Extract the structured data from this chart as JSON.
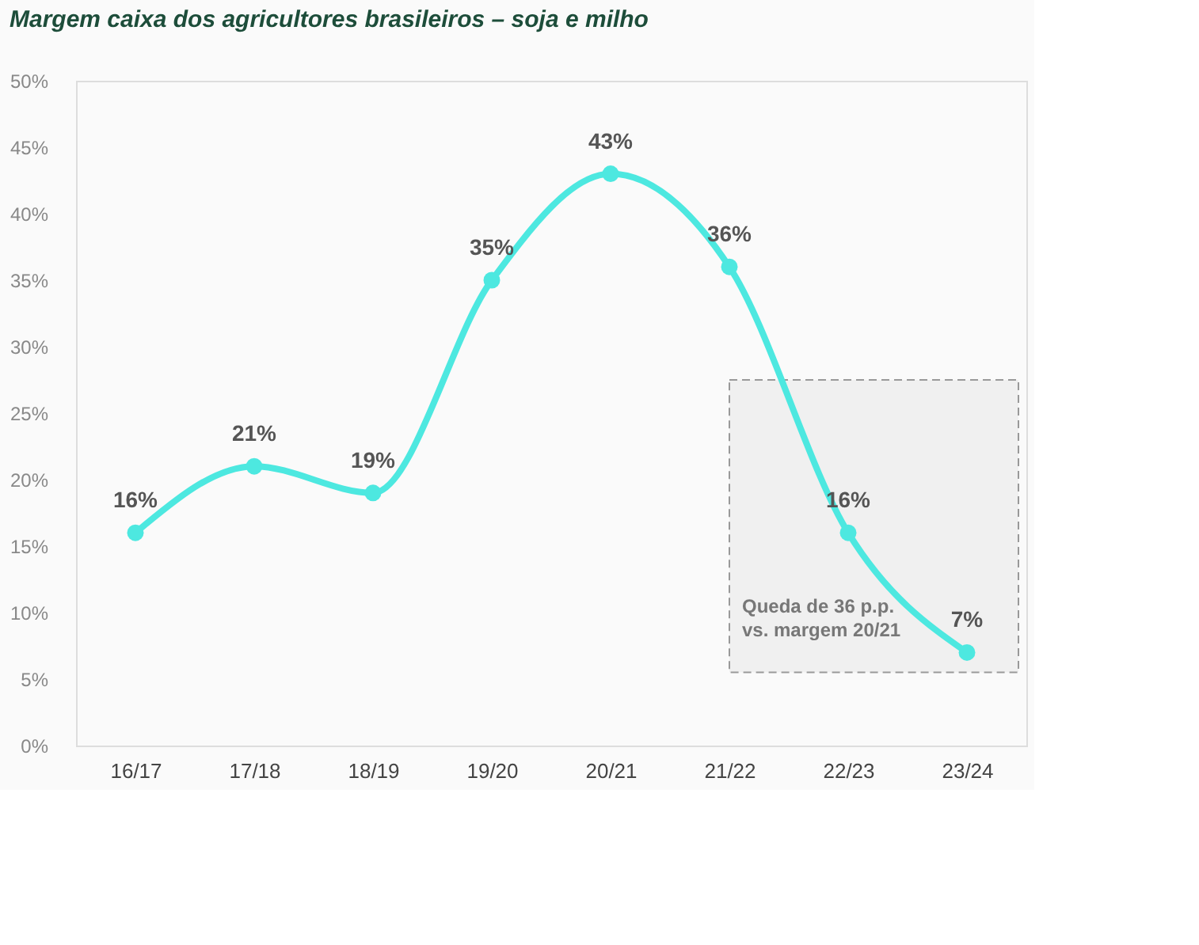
{
  "chart_data": {
    "type": "line",
    "title": "Margem caixa dos agricultores brasileiros – soja e milho",
    "categories": [
      "16/17",
      "17/18",
      "18/19",
      "19/20",
      "20/21",
      "21/22",
      "22/23",
      "23/24"
    ],
    "series": [
      {
        "color": "#4de8e0",
        "values": [
          16,
          21,
          19,
          35,
          43,
          36,
          16,
          7
        ]
      }
    ],
    "ylim": [
      0,
      50
    ],
    "yticks": [
      {
        "value": 0,
        "label": "0%"
      },
      {
        "value": 5,
        "label": "5%"
      },
      {
        "value": 10,
        "label": "10%"
      },
      {
        "value": 15,
        "label": "15%"
      },
      {
        "value": 20,
        "label": "20%"
      },
      {
        "value": 25,
        "label": "25%"
      },
      {
        "value": 30,
        "label": "30%"
      },
      {
        "value": 35,
        "label": "35%"
      },
      {
        "value": 40,
        "label": "40%"
      },
      {
        "value": 45,
        "label": "45%"
      },
      {
        "value": 50,
        "label": "50%"
      }
    ],
    "value_labels": [
      "16%",
      "21%",
      "19%",
      "35%",
      "43%",
      "36%",
      "16%",
      "7%"
    ],
    "bands": [
      {
        "axis": "y",
        "from": 5.5,
        "to": 27.5,
        "label": "Queda de 36 p.p.\nvs. margem 20/21",
        "color": "#f0f0f0"
      }
    ],
    "marker": "circle",
    "line_style": "solid",
    "grid": false
  }
}
